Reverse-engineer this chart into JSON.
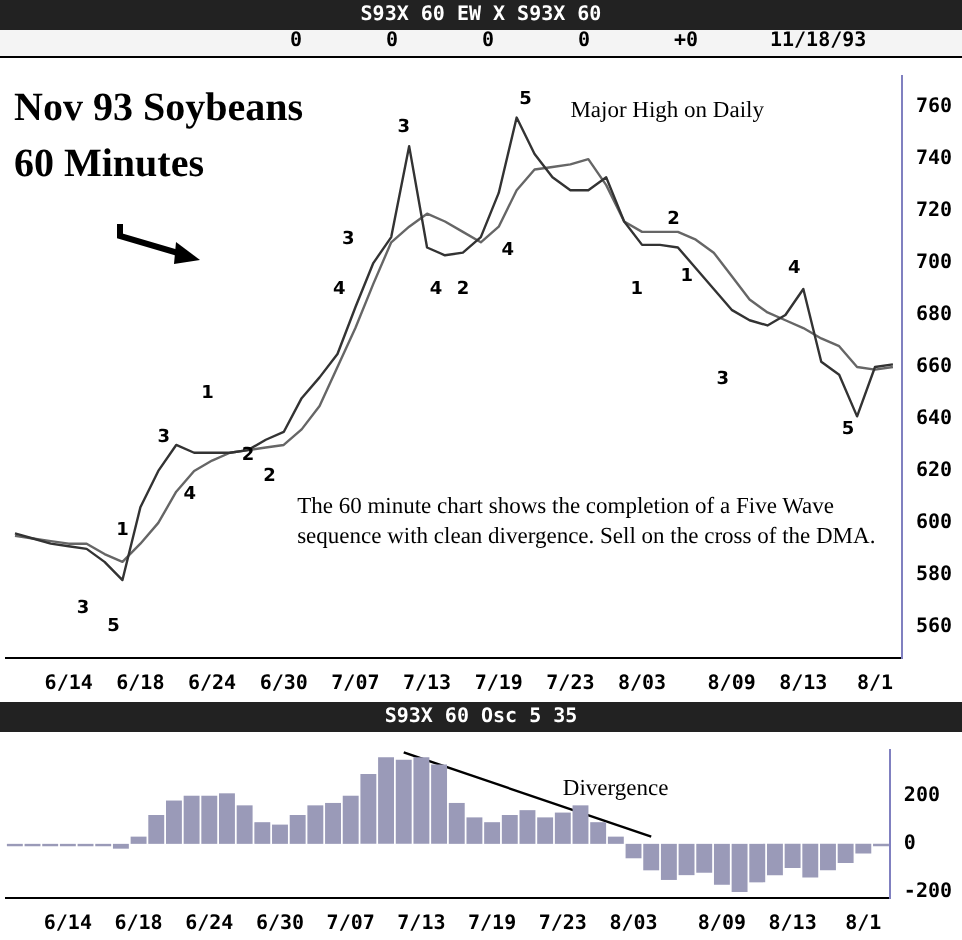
{
  "chart_data": [
    {
      "type": "line",
      "title": "Nov 93 Soybeans",
      "subtitle": "60 Minutes",
      "marker": "none",
      "ylim": [
        548,
        772
      ],
      "categories": [
        null,
        null,
        null,
        "6/14",
        null,
        null,
        null,
        "6/18",
        null,
        null,
        null,
        "6/24",
        null,
        null,
        null,
        "6/30",
        null,
        null,
        null,
        "7/07",
        null,
        null,
        null,
        "7/13",
        null,
        null,
        null,
        "7/19",
        null,
        null,
        null,
        "7/23",
        null,
        null,
        null,
        "8/03",
        null,
        null,
        null,
        null,
        "8/09",
        null,
        null,
        null,
        "8/13",
        null,
        null,
        null,
        "8/1",
        null
      ],
      "yticks": [
        560,
        580,
        600,
        620,
        640,
        660,
        680,
        700,
        720,
        740,
        760
      ],
      "series": [
        {
          "color": "#333333",
          "values": [
            596,
            594,
            592,
            591,
            590,
            585,
            578,
            606,
            620,
            630,
            627,
            627,
            627,
            628,
            632,
            635,
            648,
            656,
            665,
            683,
            700,
            710,
            745,
            706,
            703,
            704,
            710,
            727,
            756,
            742,
            733,
            728,
            728,
            733,
            716,
            707,
            707,
            706,
            698,
            690,
            682,
            678,
            676,
            680,
            690,
            662,
            657,
            641,
            660,
            661
          ]
        },
        {
          "color": "#666666",
          "values": [
            595,
            594,
            593,
            592,
            592,
            588,
            585,
            592,
            600,
            612,
            620,
            624,
            627,
            628,
            629,
            630,
            636,
            645,
            660,
            675,
            692,
            708,
            714,
            719,
            716,
            712,
            708,
            714,
            728,
            736,
            737,
            738,
            740,
            730,
            716,
            712,
            712,
            712,
            709,
            704,
            695,
            686,
            681,
            678,
            675,
            671,
            668,
            660,
            659,
            660
          ]
        }
      ],
      "annotations": [
        "S93X 60 EW X S93X 60",
        "0",
        "0",
        "0",
        "0",
        "+0",
        "11/18/93",
        "The 60 minute chart shows the completion of a Five Wave sequence with clean divergence. Sell on the cross of the DMA.",
        "Major High on Daily",
        "3",
        "5",
        "1",
        "3",
        "4",
        "1",
        "2",
        "2",
        "3",
        "4",
        "3",
        "4",
        "2",
        "4",
        "5",
        "1",
        "2",
        "1",
        "3",
        "4",
        "5"
      ]
    },
    {
      "type": "bar",
      "ylim": [
        -225,
        390
      ],
      "categories": [
        null,
        null,
        null,
        "6/14",
        null,
        null,
        null,
        "6/18",
        null,
        null,
        null,
        "6/24",
        null,
        null,
        null,
        "6/30",
        null,
        null,
        null,
        "7/07",
        null,
        null,
        null,
        "7/13",
        null,
        null,
        null,
        "7/19",
        null,
        null,
        null,
        "7/23",
        null,
        null,
        null,
        "8/03",
        null,
        null,
        null,
        null,
        "8/09",
        null,
        null,
        null,
        "8/13",
        null,
        null,
        null,
        "8/1",
        null
      ],
      "yticks": [
        -200,
        0,
        200
      ],
      "series": [
        {
          "color": "#9a9ab8",
          "values": [
            -10,
            -10,
            -10,
            -10,
            -10,
            -10,
            -20,
            30,
            120,
            180,
            200,
            200,
            210,
            160,
            90,
            80,
            120,
            160,
            170,
            200,
            290,
            360,
            350,
            360,
            330,
            170,
            110,
            90,
            120,
            140,
            110,
            130,
            160,
            90,
            30,
            -60,
            -110,
            -150,
            -130,
            -120,
            -170,
            -200,
            -160,
            -130,
            -100,
            -140,
            -110,
            -80,
            -40,
            -10
          ]
        },
        {
          "type": "line",
          "color": "#000000",
          "values": [
            null,
            null,
            null,
            null,
            null,
            null,
            null,
            null,
            null,
            null,
            null,
            null,
            null,
            null,
            null,
            null,
            null,
            null,
            null,
            null,
            null,
            null,
            380,
            null,
            null,
            null,
            null,
            null,
            null,
            null,
            null,
            null,
            null,
            null,
            null,
            null,
            30,
            null,
            null,
            null,
            null,
            null,
            null,
            null,
            null,
            null,
            null,
            null,
            null,
            null
          ]
        }
      ],
      "marker": "none",
      "annotations": [
        "S93X 60 Osc 5 35",
        "Divergence"
      ]
    }
  ]
}
